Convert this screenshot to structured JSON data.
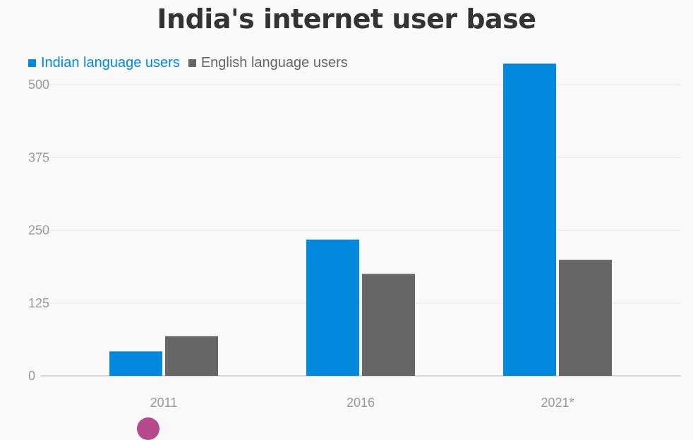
{
  "title": "India's internet user base",
  "colors": {
    "indian": "#0288dc",
    "english": "#666666",
    "axis_text": "#9a9a9a",
    "grid": "#ebebeb",
    "baseline": "#cccccc",
    "partial_mark": "#b5498c"
  },
  "chart_data": {
    "type": "bar",
    "title": "India's internet user base",
    "xlabel": "",
    "ylabel": "",
    "categories": [
      "2011",
      "2016",
      "2021*"
    ],
    "series": [
      {
        "name": "Indian language users",
        "color": "#0288dc",
        "values": [
          42,
          234,
          536
        ]
      },
      {
        "name": "English language users",
        "color": "#666666",
        "values": [
          68,
          175,
          199
        ]
      }
    ],
    "ylim": [
      0,
      500
    ],
    "yticks": [
      0,
      125,
      250,
      375,
      500
    ],
    "ytick_labels": [
      "0",
      "125",
      "250",
      "375",
      "500"
    ],
    "grid": true,
    "legend": "top-left"
  }
}
